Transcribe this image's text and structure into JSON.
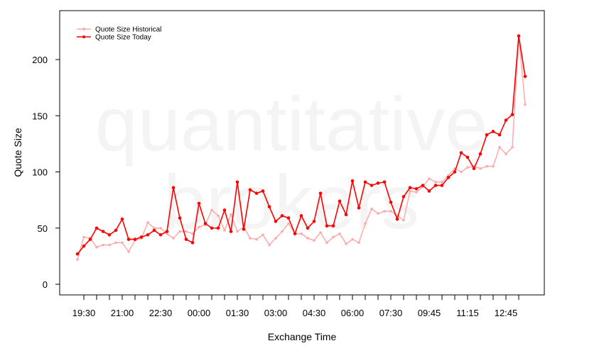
{
  "chart_data": {
    "type": "line",
    "xlabel": "Exchange Time",
    "ylabel": "Quote Size",
    "watermark": [
      "quantitative",
      "brokers"
    ],
    "ylim": [
      -8,
      232
    ],
    "y_ticks": [
      0,
      50,
      100,
      150,
      200
    ],
    "x_ticks": [
      {
        "index": 1,
        "label": "19:30"
      },
      {
        "index": 7,
        "label": "21:00"
      },
      {
        "index": 13,
        "label": "22:30"
      },
      {
        "index": 19,
        "label": "00:00"
      },
      {
        "index": 25,
        "label": "01:30"
      },
      {
        "index": 31,
        "label": "03:00"
      },
      {
        "index": 37,
        "label": "04:30"
      },
      {
        "index": 43,
        "label": "06:00"
      },
      {
        "index": 49,
        "label": "07:30"
      },
      {
        "index": 55,
        "label": "09:45"
      },
      {
        "index": 61,
        "label": "11:15"
      },
      {
        "index": 67,
        "label": "12:45"
      }
    ],
    "grid": false,
    "legend_position": "top-left",
    "series": [
      {
        "name": "Quote Size Historical",
        "color": "#ffaaaa",
        "values": [
          22,
          42,
          41,
          33,
          35,
          35,
          37,
          37,
          29,
          39,
          41,
          55,
          50,
          50,
          45,
          41,
          47,
          47,
          45,
          51,
          53,
          66,
          61,
          48,
          62,
          47,
          51,
          41,
          40,
          44,
          35,
          41,
          47,
          54,
          45,
          45,
          41,
          39,
          46,
          37,
          42,
          45,
          36,
          40,
          37,
          54,
          67,
          63,
          65,
          65,
          61,
          57,
          83,
          82,
          87,
          94,
          91,
          91,
          97,
          103,
          100,
          104,
          105,
          103,
          105,
          105,
          122,
          116,
          122,
          221,
          160
        ]
      },
      {
        "name": "Quote Size Today",
        "color": "#ff0000",
        "values": [
          27,
          34,
          40,
          50,
          47,
          44,
          48,
          58,
          40,
          40,
          42,
          44,
          48,
          44,
          47,
          86,
          59,
          40,
          37,
          72,
          54,
          50,
          50,
          66,
          47,
          91,
          49,
          84,
          81,
          83,
          69,
          56,
          61,
          59,
          45,
          61,
          50,
          56,
          81,
          52,
          52,
          74,
          62,
          92,
          68,
          91,
          88,
          90,
          91,
          73,
          58,
          78,
          86,
          85,
          88,
          83,
          88,
          88,
          95,
          100,
          117,
          113,
          103,
          116,
          133,
          136,
          133,
          146,
          151,
          221,
          185
        ]
      }
    ]
  }
}
